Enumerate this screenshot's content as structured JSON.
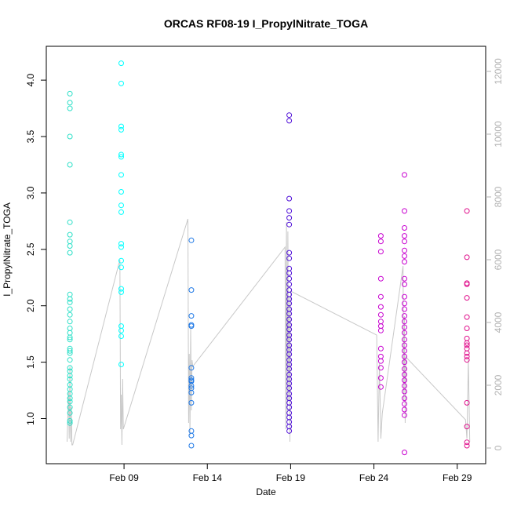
{
  "chart_data": {
    "type": "scatter",
    "title": "ORCAS RF08-19 I_PropylNitrate_TOGA",
    "xlabel": "Date",
    "ylabel": "I_PropylNitrate_TOGA",
    "xlim": [
      "2016-02-04T08:00",
      "2016-03-01T17:00"
    ],
    "ylim": [
      0.6,
      4.3
    ],
    "y2lim": [
      -500,
      12800
    ],
    "x_ticks": [
      "Feb 09",
      "Feb 14",
      "Feb 19",
      "Feb 24",
      "Feb 29"
    ],
    "x_tick_dates": [
      "2016-02-09",
      "2016-02-14",
      "2016-02-19",
      "2016-02-24",
      "2016-02-29"
    ],
    "y_ticks": [
      "1.0",
      "1.5",
      "2.0",
      "2.5",
      "3.0",
      "3.5",
      "4.0"
    ],
    "y_tick_values": [
      1.0,
      1.5,
      2.0,
      2.5,
      3.0,
      3.5,
      4.0
    ],
    "y2_ticks": [
      "0",
      "2000",
      "4000",
      "6000",
      "8000",
      "10000",
      "12000"
    ],
    "y2_tick_values": [
      0,
      2000,
      4000,
      6000,
      8000,
      10000,
      12000
    ],
    "grid": false,
    "series": [
      {
        "color": "#2de0c8",
        "points": [
          [
            "2016-02-05T18:00",
            3.88
          ],
          [
            "2016-02-05T18:00",
            3.8
          ],
          [
            "2016-02-05T18:00",
            3.75
          ],
          [
            "2016-02-05T18:00",
            3.5
          ],
          [
            "2016-02-05T18:00",
            3.25
          ],
          [
            "2016-02-05T18:00",
            2.74
          ],
          [
            "2016-02-05T18:00",
            2.63
          ],
          [
            "2016-02-05T18:00",
            2.57
          ],
          [
            "2016-02-05T18:00",
            2.53
          ],
          [
            "2016-02-05T18:00",
            2.47
          ],
          [
            "2016-02-05T18:00",
            2.1
          ],
          [
            "2016-02-05T18:00",
            2.06
          ],
          [
            "2016-02-05T18:00",
            2.03
          ],
          [
            "2016-02-05T18:00",
            1.97
          ],
          [
            "2016-02-05T18:00",
            1.92
          ],
          [
            "2016-02-05T18:00",
            1.86
          ],
          [
            "2016-02-05T18:00",
            1.8
          ],
          [
            "2016-02-05T18:00",
            1.76
          ],
          [
            "2016-02-05T18:00",
            1.72
          ],
          [
            "2016-02-05T18:00",
            1.7
          ],
          [
            "2016-02-05T18:00",
            1.62
          ],
          [
            "2016-02-05T18:00",
            1.6
          ],
          [
            "2016-02-05T18:00",
            1.58
          ],
          [
            "2016-02-05T18:00",
            1.52
          ],
          [
            "2016-02-05T18:00",
            1.45
          ],
          [
            "2016-02-05T18:00",
            1.42
          ],
          [
            "2016-02-05T18:00",
            1.38
          ],
          [
            "2016-02-05T18:00",
            1.35
          ],
          [
            "2016-02-05T18:00",
            1.3
          ],
          [
            "2016-02-05T18:00",
            1.26
          ],
          [
            "2016-02-05T18:00",
            1.22
          ],
          [
            "2016-02-05T18:00",
            1.18
          ],
          [
            "2016-02-05T18:00",
            1.15
          ],
          [
            "2016-02-05T18:00",
            1.1
          ],
          [
            "2016-02-05T18:00",
            1.05
          ],
          [
            "2016-02-05T18:00",
            0.98
          ],
          [
            "2016-02-05T18:00",
            0.96
          ]
        ]
      },
      {
        "color": "#00ffff",
        "points": [
          [
            "2016-02-08T20:00",
            4.15
          ],
          [
            "2016-02-08T20:00",
            3.97
          ],
          [
            "2016-02-08T20:00",
            3.59
          ],
          [
            "2016-02-08T20:00",
            3.56
          ],
          [
            "2016-02-08T20:00",
            3.34
          ],
          [
            "2016-02-08T20:00",
            3.32
          ],
          [
            "2016-02-08T20:00",
            3.16
          ],
          [
            "2016-02-08T20:00",
            3.01
          ],
          [
            "2016-02-08T20:00",
            2.89
          ],
          [
            "2016-02-08T20:00",
            2.83
          ],
          [
            "2016-02-08T20:00",
            2.55
          ],
          [
            "2016-02-08T20:00",
            2.52
          ],
          [
            "2016-02-08T20:00",
            2.4
          ],
          [
            "2016-02-08T20:00",
            2.34
          ],
          [
            "2016-02-08T20:00",
            2.15
          ],
          [
            "2016-02-08T20:00",
            2.12
          ],
          [
            "2016-02-08T20:00",
            1.82
          ],
          [
            "2016-02-08T20:00",
            1.78
          ],
          [
            "2016-02-08T20:00",
            1.73
          ],
          [
            "2016-02-08T20:00",
            1.48
          ]
        ]
      },
      {
        "color": "#1e78e6",
        "points": [
          [
            "2016-02-13T01:00",
            2.58
          ],
          [
            "2016-02-13T01:00",
            2.14
          ],
          [
            "2016-02-13T01:00",
            1.91
          ],
          [
            "2016-02-13T01:00",
            1.83
          ],
          [
            "2016-02-13T01:00",
            1.82
          ],
          [
            "2016-02-13T01:00",
            1.45
          ],
          [
            "2016-02-13T01:00",
            1.36
          ],
          [
            "2016-02-13T01:00",
            1.34
          ],
          [
            "2016-02-13T01:00",
            1.33
          ],
          [
            "2016-02-13T01:00",
            1.29
          ],
          [
            "2016-02-13T01:00",
            1.27
          ],
          [
            "2016-02-13T01:00",
            1.23
          ],
          [
            "2016-02-13T01:00",
            1.14
          ],
          [
            "2016-02-13T01:00",
            0.89
          ],
          [
            "2016-02-13T01:00",
            0.85
          ],
          [
            "2016-02-13T01:00",
            0.76
          ]
        ]
      },
      {
        "color": "#5010d8",
        "points": [
          [
            "2016-02-18T22:00",
            3.69
          ],
          [
            "2016-02-18T22:00",
            3.64
          ],
          [
            "2016-02-18T22:00",
            2.95
          ],
          [
            "2016-02-18T22:00",
            2.84
          ],
          [
            "2016-02-18T22:00",
            2.78
          ],
          [
            "2016-02-18T22:00",
            2.72
          ],
          [
            "2016-02-18T22:00",
            2.47
          ],
          [
            "2016-02-18T22:00",
            2.42
          ],
          [
            "2016-02-18T22:00",
            2.33
          ],
          [
            "2016-02-18T22:00",
            2.29
          ],
          [
            "2016-02-18T22:00",
            2.24
          ],
          [
            "2016-02-18T22:00",
            2.19
          ],
          [
            "2016-02-18T22:00",
            2.14
          ],
          [
            "2016-02-18T22:00",
            2.1
          ],
          [
            "2016-02-18T22:00",
            2.06
          ],
          [
            "2016-02-18T22:00",
            2.02
          ],
          [
            "2016-02-18T22:00",
            1.97
          ],
          [
            "2016-02-18T22:00",
            1.93
          ],
          [
            "2016-02-18T22:00",
            1.88
          ],
          [
            "2016-02-18T22:00",
            1.83
          ],
          [
            "2016-02-18T22:00",
            1.79
          ],
          [
            "2016-02-18T22:00",
            1.74
          ],
          [
            "2016-02-18T22:00",
            1.7
          ],
          [
            "2016-02-18T22:00",
            1.65
          ],
          [
            "2016-02-18T22:00",
            1.61
          ],
          [
            "2016-02-18T22:00",
            1.57
          ],
          [
            "2016-02-18T22:00",
            1.52
          ],
          [
            "2016-02-18T22:00",
            1.48
          ],
          [
            "2016-02-18T22:00",
            1.44
          ],
          [
            "2016-02-18T22:00",
            1.39
          ],
          [
            "2016-02-18T22:00",
            1.35
          ],
          [
            "2016-02-18T22:00",
            1.31
          ],
          [
            "2016-02-18T22:00",
            1.27
          ],
          [
            "2016-02-18T22:00",
            1.22
          ],
          [
            "2016-02-18T22:00",
            1.18
          ],
          [
            "2016-02-18T22:00",
            1.14
          ],
          [
            "2016-02-18T22:00",
            1.1
          ],
          [
            "2016-02-18T22:00",
            1.05
          ],
          [
            "2016-02-18T22:00",
            1.01
          ],
          [
            "2016-02-18T22:00",
            0.97
          ],
          [
            "2016-02-18T22:00",
            0.93
          ],
          [
            "2016-02-18T22:00",
            0.89
          ]
        ]
      },
      {
        "color": "#c800d0",
        "points": [
          [
            "2016-02-24T10:00",
            2.62
          ],
          [
            "2016-02-24T10:00",
            2.57
          ],
          [
            "2016-02-24T10:00",
            2.48
          ],
          [
            "2016-02-24T10:00",
            2.24
          ],
          [
            "2016-02-24T10:00",
            2.08
          ],
          [
            "2016-02-24T10:00",
            1.99
          ],
          [
            "2016-02-24T10:00",
            1.92
          ],
          [
            "2016-02-24T10:00",
            1.86
          ],
          [
            "2016-02-24T10:00",
            1.82
          ],
          [
            "2016-02-24T10:00",
            1.78
          ],
          [
            "2016-02-24T10:00",
            1.62
          ],
          [
            "2016-02-24T10:00",
            1.55
          ],
          [
            "2016-02-24T10:00",
            1.51
          ],
          [
            "2016-02-24T10:00",
            1.45
          ],
          [
            "2016-02-24T10:00",
            1.36
          ],
          [
            "2016-02-24T10:00",
            1.28
          ],
          [
            "2016-02-25T20:00",
            3.16
          ],
          [
            "2016-02-25T20:00",
            2.84
          ],
          [
            "2016-02-25T20:00",
            2.69
          ],
          [
            "2016-02-25T20:00",
            2.62
          ],
          [
            "2016-02-25T20:00",
            2.57
          ],
          [
            "2016-02-25T20:00",
            2.49
          ],
          [
            "2016-02-25T20:00",
            2.44
          ],
          [
            "2016-02-25T20:00",
            2.39
          ],
          [
            "2016-02-25T20:00",
            2.24
          ],
          [
            "2016-02-25T20:00",
            2.19
          ],
          [
            "2016-02-25T20:00",
            2.08
          ],
          [
            "2016-02-25T20:00",
            2.02
          ],
          [
            "2016-02-25T20:00",
            1.97
          ],
          [
            "2016-02-25T20:00",
            1.91
          ],
          [
            "2016-02-25T20:00",
            1.86
          ],
          [
            "2016-02-25T20:00",
            1.81
          ],
          [
            "2016-02-25T20:00",
            1.76
          ],
          [
            "2016-02-25T20:00",
            1.7
          ],
          [
            "2016-02-25T20:00",
            1.65
          ],
          [
            "2016-02-25T20:00",
            1.6
          ],
          [
            "2016-02-25T20:00",
            1.55
          ],
          [
            "2016-02-25T20:00",
            1.5
          ],
          [
            "2016-02-25T20:00",
            1.44
          ],
          [
            "2016-02-25T20:00",
            1.39
          ],
          [
            "2016-02-25T20:00",
            1.34
          ],
          [
            "2016-02-25T20:00",
            1.29
          ],
          [
            "2016-02-25T20:00",
            1.24
          ],
          [
            "2016-02-25T20:00",
            1.18
          ],
          [
            "2016-02-25T20:00",
            1.13
          ],
          [
            "2016-02-25T20:00",
            1.08
          ],
          [
            "2016-02-25T20:00",
            1.03
          ],
          [
            "2016-02-25T20:00",
            0.7
          ]
        ]
      },
      {
        "color": "#e0108c",
        "points": [
          [
            "2016-02-29T14:00",
            2.84
          ],
          [
            "2016-02-29T14:00",
            2.43
          ],
          [
            "2016-02-29T14:00",
            2.2
          ],
          [
            "2016-02-29T14:00",
            2.19
          ],
          [
            "2016-02-29T14:00",
            2.07
          ],
          [
            "2016-02-29T14:00",
            1.9
          ],
          [
            "2016-02-29T14:00",
            1.8
          ],
          [
            "2016-02-29T14:00",
            1.71
          ],
          [
            "2016-02-29T14:00",
            1.67
          ],
          [
            "2016-02-29T14:00",
            1.65
          ],
          [
            "2016-02-29T14:00",
            1.62
          ],
          [
            "2016-02-29T14:00",
            1.58
          ],
          [
            "2016-02-29T14:00",
            1.55
          ],
          [
            "2016-02-29T14:00",
            1.52
          ],
          [
            "2016-02-29T14:00",
            1.14
          ],
          [
            "2016-02-29T14:00",
            0.93
          ],
          [
            "2016-02-29T14:00",
            0.79
          ],
          [
            "2016-02-29T14:00",
            0.76
          ]
        ]
      }
    ],
    "secondary_line": {
      "color": "#c8c8c8",
      "axis": "right",
      "points": [
        [
          "2016-02-05T14:00",
          200
        ],
        [
          "2016-02-05T16:00",
          1800
        ],
        [
          "2016-02-05T17:00",
          300
        ],
        [
          "2016-02-05T18:00",
          2600
        ],
        [
          "2016-02-05T19:00",
          200
        ],
        [
          "2016-02-05T20:00",
          1300
        ],
        [
          "2016-02-05T21:00",
          100
        ],
        [
          "2016-02-05T22:00",
          100
        ],
        [
          "2016-02-08T18:00",
          6000
        ],
        [
          "2016-02-08T19:00",
          600
        ],
        [
          "2016-02-08T20:00",
          1700
        ],
        [
          "2016-02-08T21:00",
          100
        ],
        [
          "2016-02-08T22:00",
          2200
        ],
        [
          "2016-02-08T23:00",
          600
        ],
        [
          "2016-02-12T20:00",
          7300
        ],
        [
          "2016-02-12T21:00",
          800
        ],
        [
          "2016-02-12T22:00",
          3000
        ],
        [
          "2016-02-12T23:00",
          400
        ],
        [
          "2016-02-13T00:00",
          3800
        ],
        [
          "2016-02-13T01:00",
          1200
        ],
        [
          "2016-02-13T02:00",
          2800
        ],
        [
          "2016-02-13T03:00",
          2600
        ],
        [
          "2016-02-18T16:00",
          6400
        ],
        [
          "2016-02-18T17:00",
          600
        ],
        [
          "2016-02-18T18:00",
          7200
        ],
        [
          "2016-02-18T19:00",
          1000
        ],
        [
          "2016-02-18T20:00",
          6900
        ],
        [
          "2016-02-18T21:00",
          1500
        ],
        [
          "2016-02-18T22:00",
          4800
        ],
        [
          "2016-02-18T23:00",
          200
        ],
        [
          "2016-02-19T00:00",
          5000
        ],
        [
          "2016-02-24T04:00",
          3600
        ],
        [
          "2016-02-24T06:00",
          200
        ],
        [
          "2016-02-24T08:00",
          2700
        ],
        [
          "2016-02-24T10:00",
          300
        ],
        [
          "2016-02-24T12:00",
          1100
        ],
        [
          "2016-02-25T18:00",
          5800
        ],
        [
          "2016-02-25T19:00",
          1500
        ],
        [
          "2016-02-25T20:00",
          4200
        ],
        [
          "2016-02-25T21:00",
          800
        ],
        [
          "2016-02-25T22:00",
          2900
        ],
        [
          "2016-02-29T12:00",
          900
        ],
        [
          "2016-02-29T14:00",
          300
        ],
        [
          "2016-02-29T16:00",
          2800
        ],
        [
          "2016-02-29T18:00",
          200
        ]
      ]
    }
  }
}
